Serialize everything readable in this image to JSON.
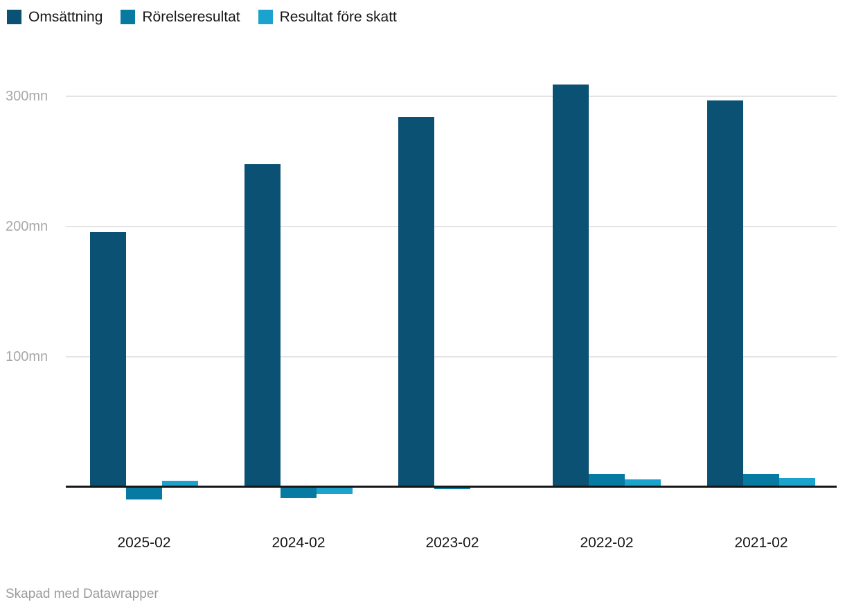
{
  "legend": {
    "items": [
      {
        "label": "Omsättning",
        "color": "#0a5174"
      },
      {
        "label": "Rörelseresultat",
        "color": "#077aa1"
      },
      {
        "label": "Resultat före skatt",
        "color": "#1ba3cd"
      }
    ]
  },
  "chart_data": {
    "type": "bar",
    "categories": [
      "2025-02",
      "2024-02",
      "2023-02",
      "2022-02",
      "2021-02"
    ],
    "series": [
      {
        "name": "Omsättning",
        "color": "#0a5174",
        "values": [
          196,
          248,
          284,
          309,
          297
        ]
      },
      {
        "name": "Rörelseresultat",
        "color": "#077aa1",
        "values": [
          -9,
          -8,
          -1,
          10,
          10
        ]
      },
      {
        "name": "Resultat före skatt",
        "color": "#1ba3cd",
        "values": [
          5,
          -5,
          0,
          6,
          7
        ]
      }
    ],
    "title": "",
    "xlabel": "",
    "ylabel": "",
    "unit": "mn",
    "y_ticks": [
      {
        "value": 300,
        "label": "300mn"
      },
      {
        "value": 200,
        "label": "200mn"
      },
      {
        "value": 100,
        "label": "100mn"
      }
    ],
    "ylim": [
      -20,
      330
    ],
    "grid": true,
    "legend_position": "top-left"
  },
  "footer": {
    "credit": "Skapad med Datawrapper"
  },
  "colors": {
    "background": "#ffffff",
    "grid": "#e4e4e4",
    "axis": "#161616",
    "y_tick_label": "#a8a8a8",
    "x_tick_label": "#161616",
    "credit": "#9b9b9b"
  }
}
